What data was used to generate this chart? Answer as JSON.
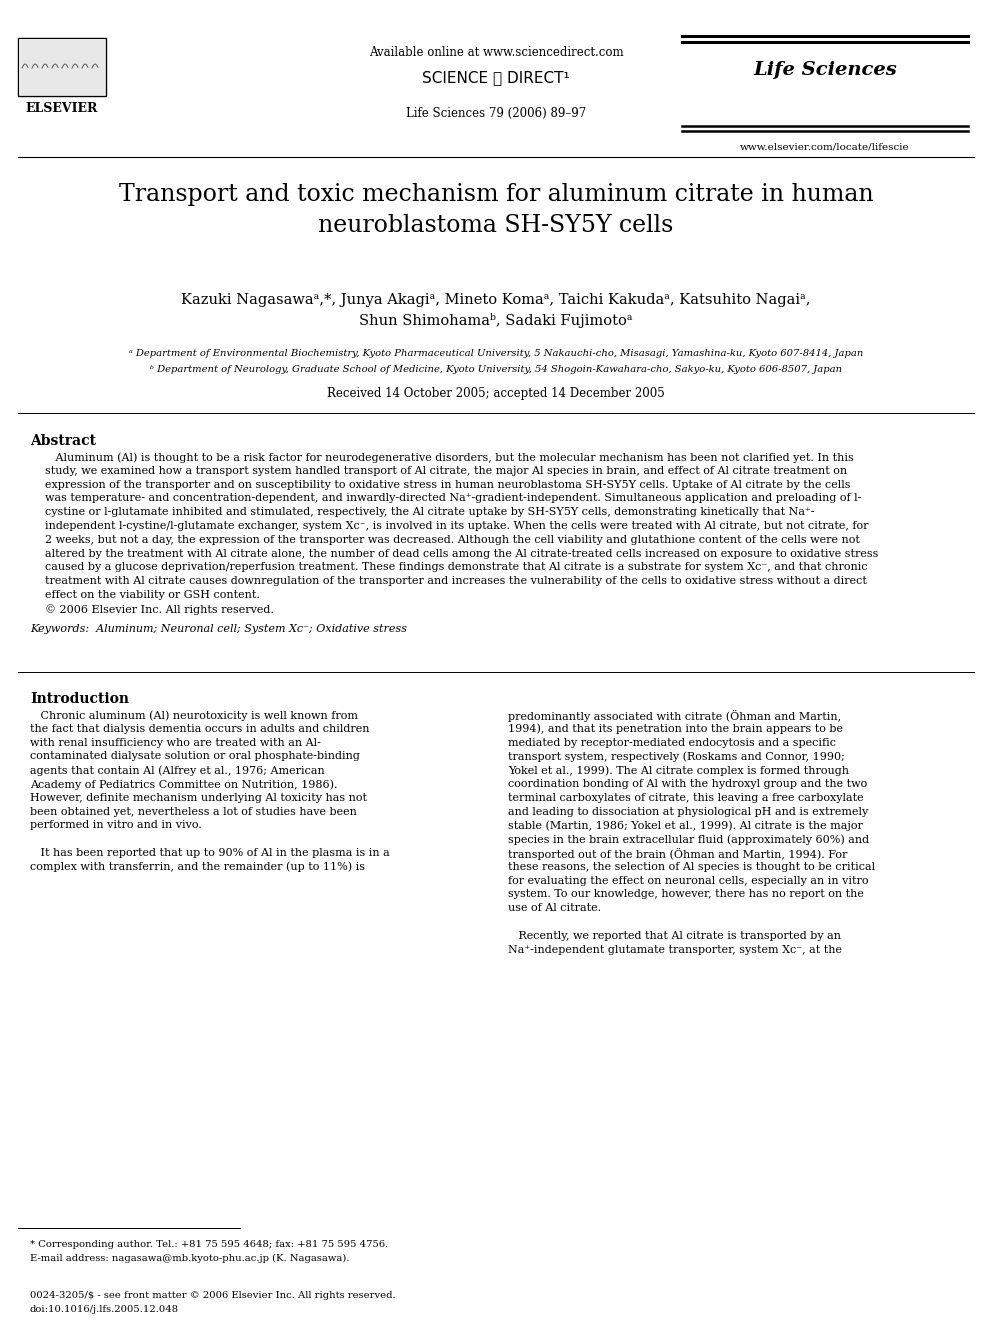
{
  "bg_color": "#ffffff",
  "header": {
    "available_online": "Available online at www.sciencedirect.com",
    "journal_info": "Life Sciences 79 (2006) 89–97",
    "journal_name": "Life Sciences",
    "website": "www.elsevier.com/locate/lifescie",
    "elsevier": "ELSEVIER"
  },
  "title": "Transport and toxic mechanism for aluminum citrate in human\nneuroblastoma SH-SY5Y cells",
  "affil_a": "ᵃ Department of Environmental Biochemistry, Kyoto Pharmaceutical University, 5 Nakauchi-cho, Misasagi, Yamashina-ku, Kyoto 607-8414, Japan",
  "affil_b": "ᵇ Department of Neurology, Graduate School of Medicine, Kyoto University, 54 Shogoin-Kawahara-cho, Sakyo-ku, Kyoto 606-8507, Japan",
  "received": "Received 14 October 2005; accepted 14 December 2005",
  "abstract_title": "Abstract",
  "keywords": "Keywords:  Aluminum; Neuronal cell; System Xc⁻; Oxidative stress",
  "intro_title": "Introduction",
  "footnote_star": "* Corresponding author. Tel.: +81 75 595 4648; fax: +81 75 595 4756.",
  "footnote_email": "E-mail address: nagasawa@mb.kyoto-phu.ac.jp (K. Nagasawa).",
  "footer_issn": "0024-3205/$ - see front matter © 2006 Elsevier Inc. All rights reserved.",
  "footer_doi": "doi:10.1016/j.lfs.2005.12.048",
  "abstract_lines": [
    "   Aluminum (Al) is thought to be a risk factor for neurodegenerative disorders, but the molecular mechanism has been not clarified yet. In this",
    "study, we examined how a transport system handled transport of Al citrate, the major Al species in brain, and effect of Al citrate treatment on",
    "expression of the transporter and on susceptibility to oxidative stress in human neuroblastoma SH-SY5Y cells. Uptake of Al citrate by the cells",
    "was temperature- and concentration-dependent, and inwardly-directed Na⁺-gradient-independent. Simultaneous application and preloading of l-",
    "cystine or l-glutamate inhibited and stimulated, respectively, the Al citrate uptake by SH-SY5Y cells, demonstrating kinetically that Na⁺-",
    "independent l-cystine/l-glutamate exchanger, system Xc⁻, is involved in its uptake. When the cells were treated with Al citrate, but not citrate, for",
    "2 weeks, but not a day, the expression of the transporter was decreased. Although the cell viability and glutathione content of the cells were not",
    "altered by the treatment with Al citrate alone, the number of dead cells among the Al citrate-treated cells increased on exposure to oxidative stress",
    "caused by a glucose deprivation/reperfusion treatment. These findings demonstrate that Al citrate is a substrate for system Xc⁻, and that chronic",
    "treatment with Al citrate causes downregulation of the transporter and increases the vulnerability of the cells to oxidative stress without a direct",
    "effect on the viability or GSH content.",
    "© 2006 Elsevier Inc. All rights reserved."
  ],
  "col1_lines": [
    "   Chronic aluminum (Al) neurotoxicity is well known from",
    "the fact that dialysis dementia occurs in adults and children",
    "with renal insufficiency who are treated with an Al-",
    "contaminated dialysate solution or oral phosphate-binding",
    "agents that contain Al (Alfrey et al., 1976; American",
    "Academy of Pediatrics Committee on Nutrition, 1986).",
    "However, definite mechanism underlying Al toxicity has not",
    "been obtained yet, nevertheless a lot of studies have been",
    "performed in vitro and in vivo.",
    "",
    "   It has been reported that up to 90% of Al in the plasma is in a",
    "complex with transferrin, and the remainder (up to 11%) is"
  ],
  "col2_lines": [
    "predominantly associated with citrate (Öhman and Martin,",
    "1994), and that its penetration into the brain appears to be",
    "mediated by receptor-mediated endocytosis and a specific",
    "transport system, respectively (Roskams and Connor, 1990;",
    "Yokel et al., 1999). The Al citrate complex is formed through",
    "coordination bonding of Al with the hydroxyl group and the two",
    "terminal carboxylates of citrate, this leaving a free carboxylate",
    "and leading to dissociation at physiological pH and is extremely",
    "stable (Martin, 1986; Yokel et al., 1999). Al citrate is the major",
    "species in the brain extracellular fluid (approximately 60%) and",
    "transported out of the brain (Öhman and Martin, 1994). For",
    "these reasons, the selection of Al species is thought to be critical",
    "for evaluating the effect on neuronal cells, especially an in vitro",
    "system. To our knowledge, however, there has no report on the",
    "use of Al citrate.",
    "",
    "   Recently, we reported that Al citrate is transported by an",
    "Na⁺-independent glutamate transporter, system Xc⁻, at the"
  ]
}
